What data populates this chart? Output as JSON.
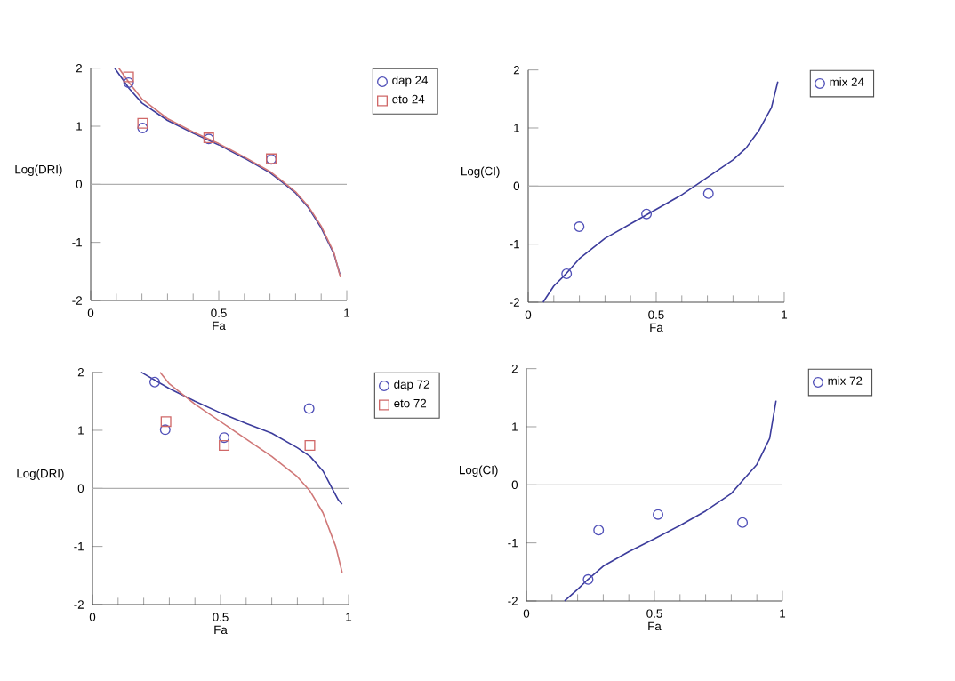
{
  "chart_data": [
    {
      "type": "scatter",
      "xlabel": "Fa",
      "ylabel": "Log(DRI)",
      "xlim": [
        0,
        1
      ],
      "ylim": [
        -2,
        2
      ],
      "xticks": [
        0,
        0.5,
        1
      ],
      "yticks": [
        -2,
        -1,
        0,
        1,
        2
      ],
      "legend": "right",
      "grid": false,
      "ref_lines": [
        {
          "axis": "y",
          "value": 0,
          "color": "#b0b0b0"
        }
      ],
      "series": [
        {
          "name": "dap 24",
          "color": "#5050b8",
          "marker": "circle",
          "x": [
            0.148,
            0.203,
            0.461,
            0.705
          ],
          "values": [
            1.75,
            0.97,
            0.78,
            0.43
          ]
        },
        {
          "name": "eto 24",
          "color": "#d06868",
          "marker": "square",
          "x": [
            0.148,
            0.203,
            0.461,
            0.705
          ],
          "values": [
            1.85,
            1.05,
            0.8,
            0.44
          ]
        },
        {
          "type": "line",
          "color": "#3c3c9c",
          "x": [
            0.094,
            0.15,
            0.2,
            0.3,
            0.4,
            0.5,
            0.6,
            0.7,
            0.75,
            0.8,
            0.85,
            0.9,
            0.95,
            0.973
          ],
          "values": [
            2.0,
            1.65,
            1.4,
            1.1,
            0.88,
            0.68,
            0.45,
            0.2,
            0.03,
            -0.15,
            -0.4,
            -0.75,
            -1.2,
            -1.55
          ]
        },
        {
          "type": "line",
          "color": "#d07878",
          "x": [
            0.11,
            0.15,
            0.2,
            0.3,
            0.4,
            0.5,
            0.6,
            0.7,
            0.75,
            0.8,
            0.85,
            0.9,
            0.95,
            0.975
          ],
          "values": [
            2.0,
            1.75,
            1.47,
            1.13,
            0.9,
            0.7,
            0.47,
            0.22,
            0.05,
            -0.13,
            -0.38,
            -0.72,
            -1.18,
            -1.6
          ]
        }
      ]
    },
    {
      "type": "scatter",
      "xlabel": "Fa",
      "ylabel": "Log(CI)",
      "xlim": [
        0,
        1
      ],
      "ylim": [
        -2,
        2
      ],
      "xticks": [
        0,
        0.5,
        1
      ],
      "yticks": [
        -2,
        -1,
        0,
        1,
        2
      ],
      "legend": "right",
      "grid": false,
      "ref_lines": [
        {
          "axis": "y",
          "value": 0,
          "color": "#b0b0b0"
        }
      ],
      "series": [
        {
          "name": "mix 24",
          "color": "#5050b8",
          "marker": "circle",
          "x": [
            0.15,
            0.199,
            0.462,
            0.704
          ],
          "values": [
            -1.51,
            -0.7,
            -0.48,
            -0.13
          ]
        },
        {
          "type": "line",
          "color": "#3c3c9c",
          "x": [
            0.058,
            0.1,
            0.15,
            0.2,
            0.3,
            0.4,
            0.5,
            0.6,
            0.65,
            0.7,
            0.8,
            0.85,
            0.9,
            0.95,
            0.975
          ],
          "values": [
            -2.0,
            -1.72,
            -1.5,
            -1.25,
            -0.9,
            -0.65,
            -0.4,
            -0.15,
            0.0,
            0.15,
            0.45,
            0.65,
            0.95,
            1.35,
            1.8
          ]
        }
      ]
    },
    {
      "type": "scatter",
      "xlabel": "Fa",
      "ylabel": "Log(DRI)",
      "xlim": [
        0,
        1
      ],
      "ylim": [
        -2,
        2
      ],
      "xticks": [
        0,
        0.5,
        1
      ],
      "yticks": [
        -2,
        -1,
        0,
        1,
        2
      ],
      "legend": "right",
      "grid": false,
      "ref_lines": [
        {
          "axis": "y",
          "value": 0,
          "color": "#b0b0b0"
        }
      ],
      "series": [
        {
          "name": "dap 72",
          "color": "#5050b8",
          "marker": "circle",
          "x": [
            0.243,
            0.284,
            0.514,
            0.846
          ],
          "values": [
            1.83,
            1.01,
            0.875,
            1.375
          ]
        },
        {
          "name": "eto 72",
          "color": "#d06868",
          "marker": "square",
          "x": [
            0.287,
            0.514,
            0.849
          ],
          "values": [
            1.15,
            0.74,
            0.74
          ]
        },
        {
          "type": "line",
          "color": "#3c3c9c",
          "x": [
            0.19,
            0.3,
            0.4,
            0.5,
            0.6,
            0.7,
            0.8,
            0.85,
            0.9,
            0.93,
            0.96,
            0.975
          ],
          "values": [
            2.0,
            1.72,
            1.5,
            1.3,
            1.12,
            0.95,
            0.7,
            0.55,
            0.3,
            0.05,
            -0.2,
            -0.27
          ]
        },
        {
          "type": "line",
          "color": "#d07878",
          "x": [
            0.264,
            0.3,
            0.4,
            0.5,
            0.6,
            0.7,
            0.8,
            0.85,
            0.9,
            0.95,
            0.975
          ],
          "values": [
            2.0,
            1.8,
            1.45,
            1.15,
            0.85,
            0.55,
            0.2,
            -0.05,
            -0.42,
            -1.0,
            -1.45
          ]
        }
      ]
    },
    {
      "type": "scatter",
      "xlabel": "Fa",
      "ylabel": "Log(CI)",
      "xlim": [
        0,
        1
      ],
      "ylim": [
        -2,
        2
      ],
      "xticks": [
        0,
        0.5,
        1
      ],
      "yticks": [
        -2,
        -1,
        0,
        1,
        2
      ],
      "legend": "right",
      "grid": false,
      "ref_lines": [
        {
          "axis": "y",
          "value": 0,
          "color": "#b0b0b0"
        }
      ],
      "series": [
        {
          "name": "mix 72",
          "color": "#5050b8",
          "marker": "circle",
          "x": [
            0.241,
            0.282,
            0.514,
            0.844
          ],
          "values": [
            -1.63,
            -0.78,
            -0.51,
            -0.65
          ]
        },
        {
          "type": "line",
          "color": "#3c3c9c",
          "x": [
            0.149,
            0.2,
            0.24,
            0.3,
            0.4,
            0.5,
            0.6,
            0.7,
            0.8,
            0.83,
            0.9,
            0.95,
            0.975
          ],
          "values": [
            -2.0,
            -1.8,
            -1.63,
            -1.4,
            -1.15,
            -0.93,
            -0.7,
            -0.45,
            -0.15,
            0.0,
            0.35,
            0.8,
            1.45
          ]
        }
      ]
    }
  ]
}
